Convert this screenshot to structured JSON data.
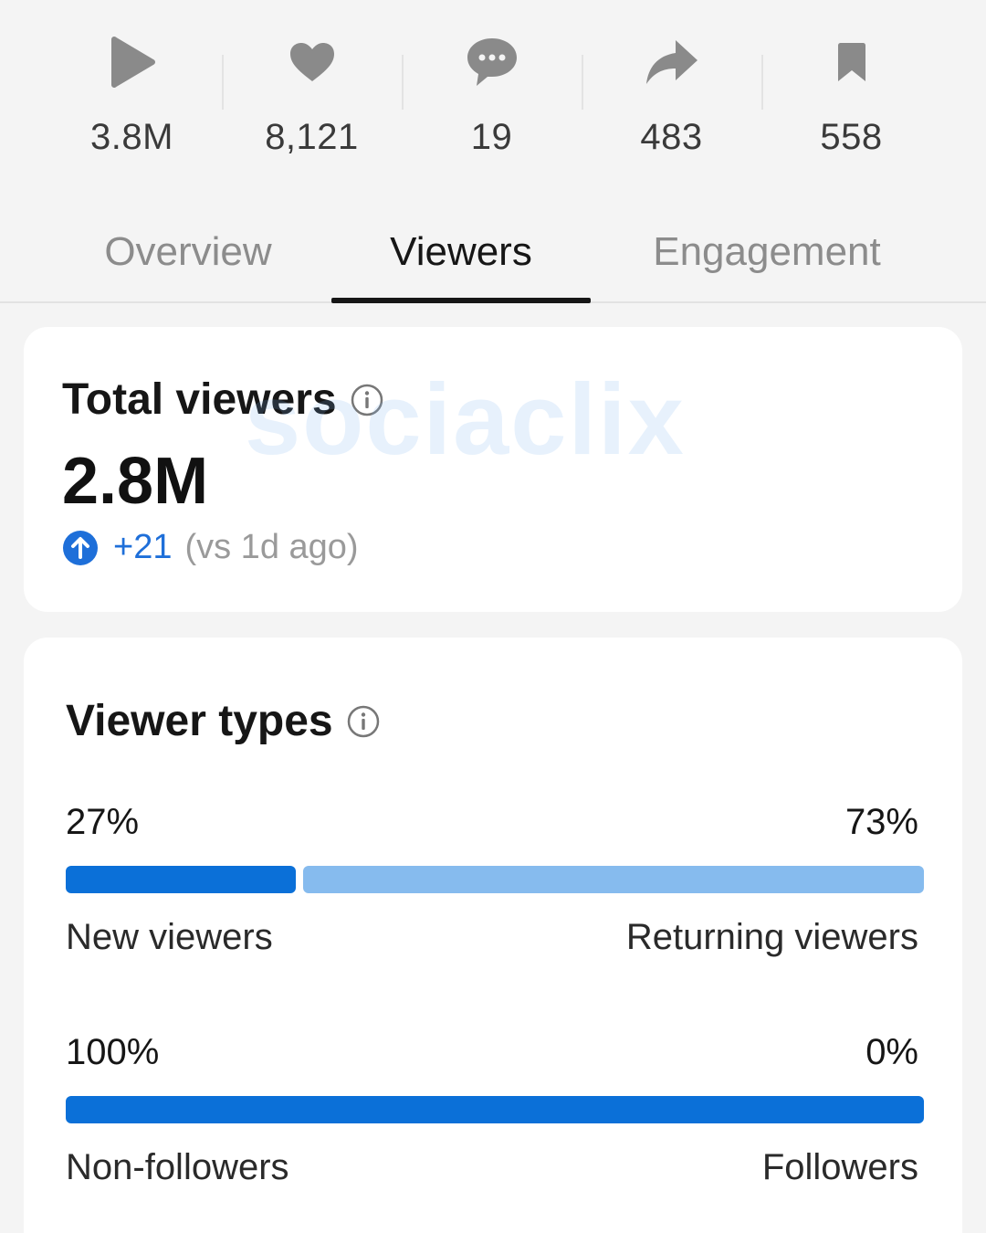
{
  "stats": [
    {
      "icon": "play-icon",
      "value": "3.8M"
    },
    {
      "icon": "heart-icon",
      "value": "8,121"
    },
    {
      "icon": "comment-icon",
      "value": "19"
    },
    {
      "icon": "share-icon",
      "value": "483"
    },
    {
      "icon": "bookmark-icon",
      "value": "558"
    }
  ],
  "tabs": [
    {
      "label": "Overview",
      "active": false
    },
    {
      "label": "Viewers",
      "active": true
    },
    {
      "label": "Engagement",
      "active": false
    }
  ],
  "total_viewers": {
    "title": "Total viewers",
    "value": "2.8M",
    "delta": "+21",
    "comparison": "(vs 1d ago)"
  },
  "watermark": "sociaclix",
  "viewer_types": {
    "title": "Viewer types",
    "bars": [
      {
        "left_pct": "27%",
        "right_pct": "73%",
        "left_label": "New viewers",
        "right_label": "Returning viewers",
        "left_fraction": 0.27
      },
      {
        "left_pct": "100%",
        "right_pct": "0%",
        "left_label": "Non-followers",
        "right_label": "Followers",
        "left_fraction": 1.0
      }
    ]
  },
  "colors": {
    "accent": "#0b70d8",
    "accent_light": "#86bbee",
    "delta_blue": "#1e6fd9"
  }
}
